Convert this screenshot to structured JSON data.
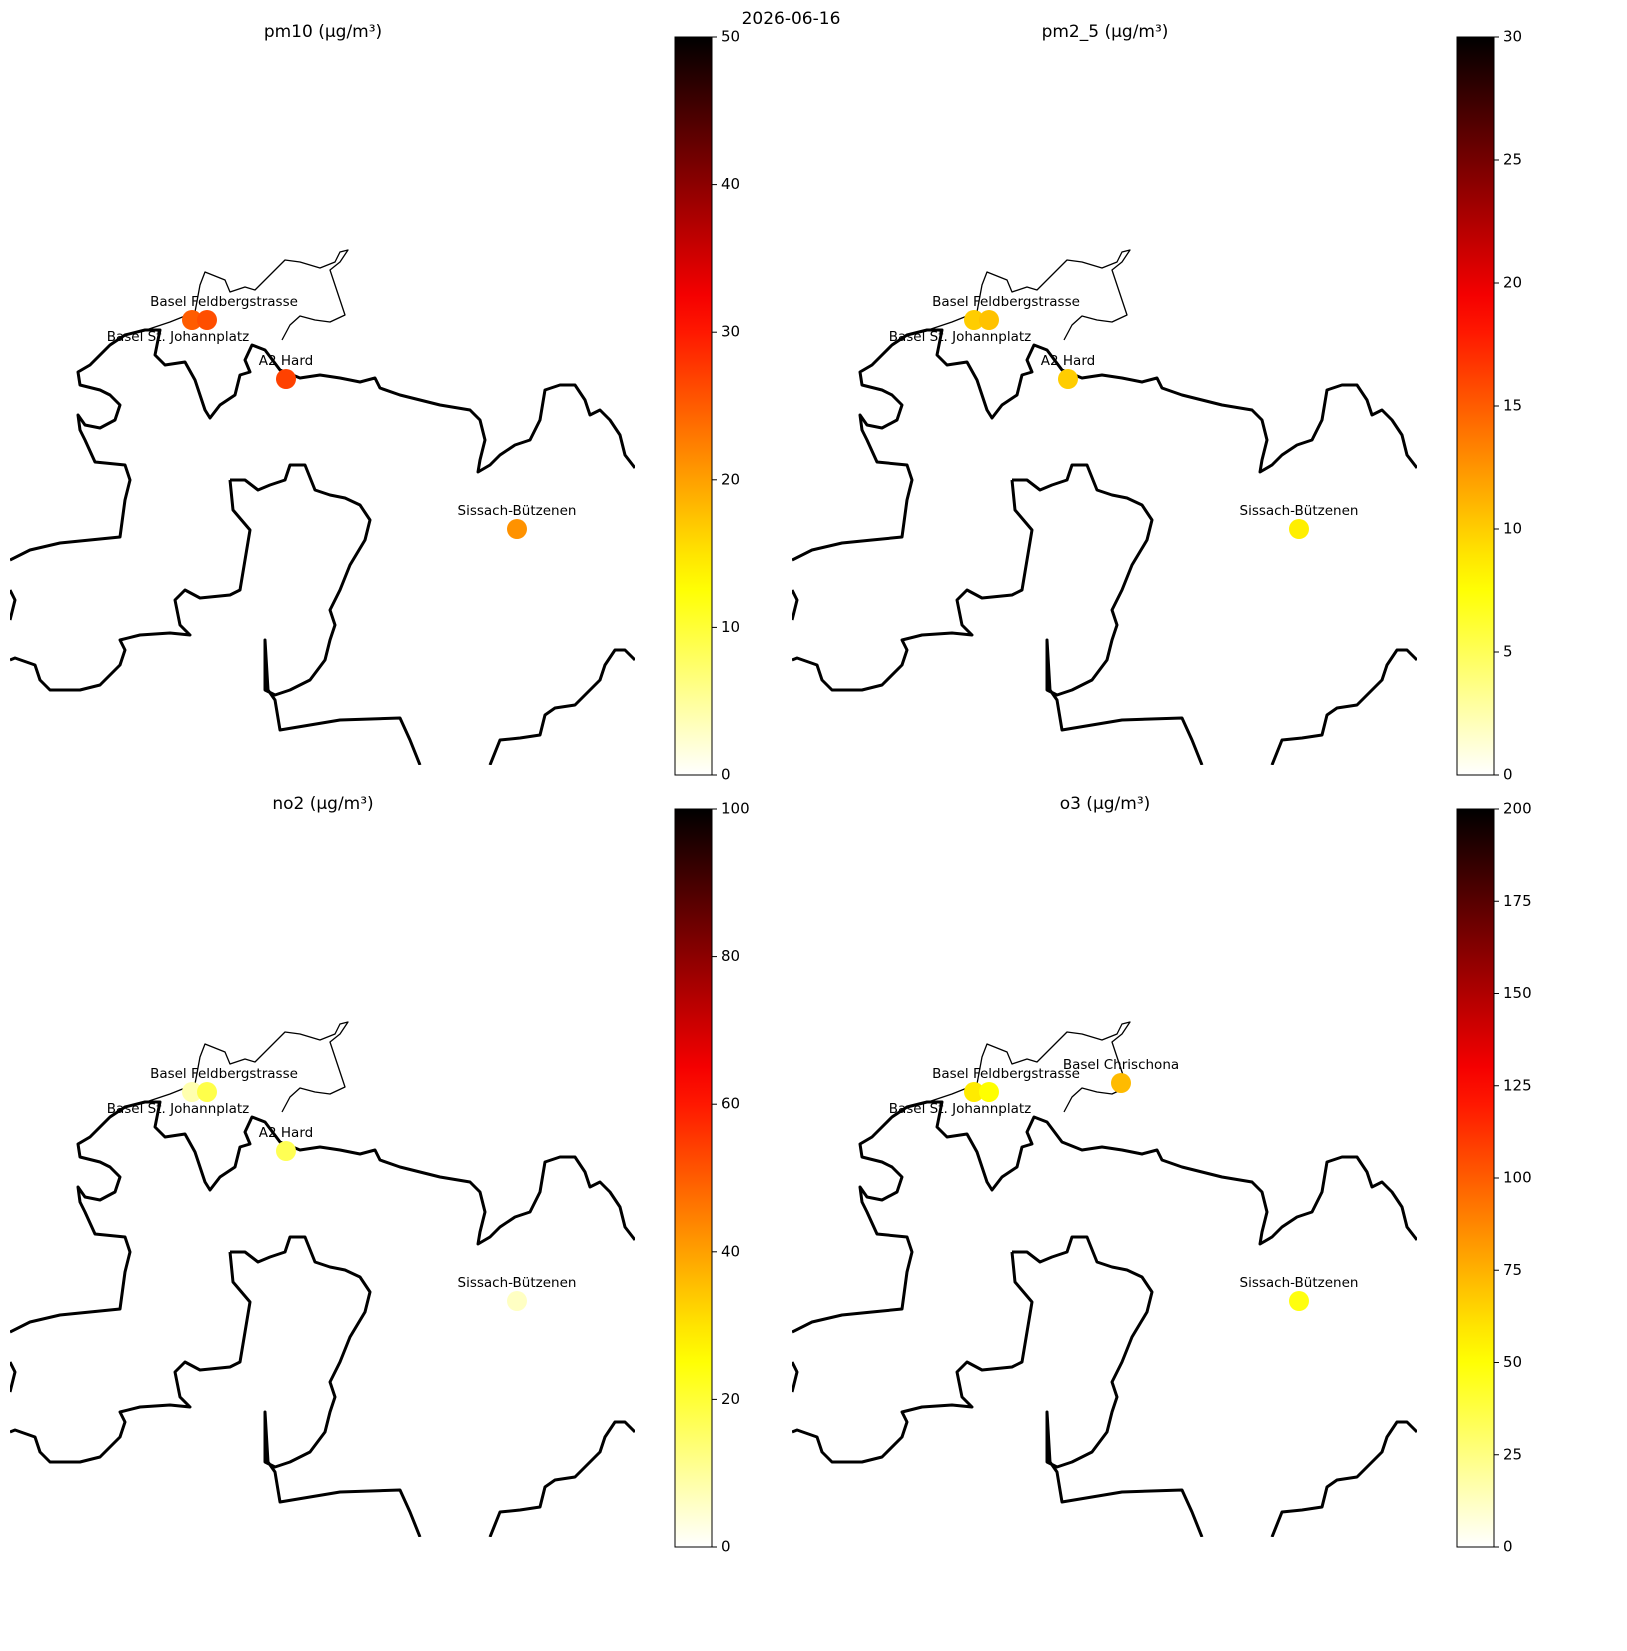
{
  "title": "2026-06-16",
  "chart_data": [
    {
      "type": "map",
      "title": "pm10 (µg/m³)",
      "colormap": "hot_r",
      "categories": [
        "Basel St. Johannplatz",
        "Basel Feldbergstrasse",
        "A2 Hard",
        "Sissach-Bützenen"
      ],
      "values": [
        25,
        26,
        27,
        21
      ],
      "clim": [
        0,
        50
      ],
      "cticks": [
        0,
        10,
        20,
        30,
        40,
        50
      ]
    },
    {
      "type": "map",
      "title": "pm2_5 (µg/m³)",
      "colormap": "hot_r",
      "categories": [
        "Basel St. Johannplatz",
        "Basel Feldbergstrasse",
        "A2 Hard",
        "Sissach-Bützenen"
      ],
      "values": [
        10,
        10.5,
        10,
        8.5
      ],
      "clim": [
        0,
        30
      ],
      "cticks": [
        0,
        5,
        10,
        15,
        20,
        25,
        30
      ]
    },
    {
      "type": "map",
      "title": "no2 (µg/m³)",
      "colormap": "hot_r",
      "categories": [
        "Basel St. Johannplatz",
        "Basel Feldbergstrasse",
        "A2 Hard",
        "Sissach-Bützenen"
      ],
      "values": [
        8,
        18,
        17,
        6
      ],
      "clim": [
        0,
        100
      ],
      "cticks": [
        0,
        20,
        40,
        60,
        80,
        100
      ]
    },
    {
      "type": "map",
      "title": "o3 (µg/m³)",
      "colormap": "hot_r",
      "categories": [
        "Basel St. Johannplatz",
        "Basel Feldbergstrasse",
        "Basel Chrischona",
        "Sissach-Bützenen"
      ],
      "values": [
        58,
        52,
        72,
        48
      ],
      "clim": [
        0,
        200
      ],
      "cticks": [
        0,
        25,
        50,
        75,
        100,
        125,
        150,
        175,
        200
      ]
    }
  ]
}
